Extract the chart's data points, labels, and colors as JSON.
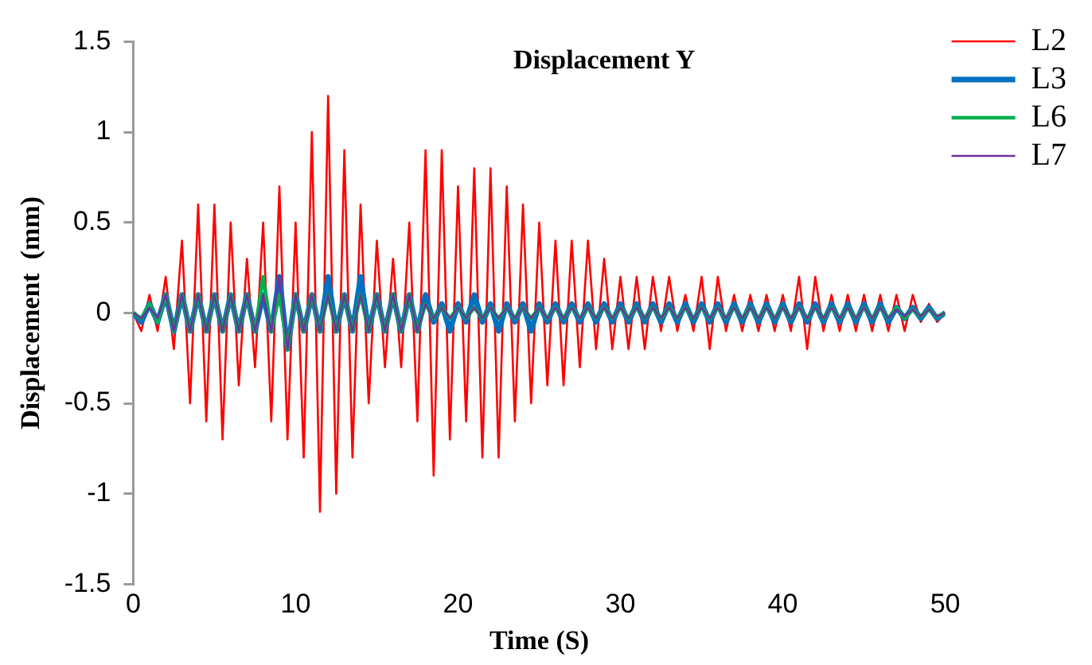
{
  "chart_data": {
    "type": "line",
    "title": "Displacement Y",
    "xlabel": "Time (S)",
    "ylabel": "Displacement  (mm)",
    "xlim": [
      0,
      50
    ],
    "xticks": [
      0,
      10,
      20,
      30,
      40,
      50
    ],
    "ylim": [
      -1.5,
      1.5
    ],
    "yticks": [
      -1.5,
      -1,
      -0.5,
      0,
      0.5,
      1,
      1.5
    ],
    "grid": false,
    "legend": "top right",
    "marker": "none",
    "line_style": "solid",
    "x": [
      0,
      0.5,
      1,
      1.5,
      2,
      2.5,
      3,
      3.5,
      4,
      4.5,
      5,
      5.5,
      6,
      6.5,
      7,
      7.5,
      8,
      8.5,
      9,
      9.5,
      10,
      10.5,
      11,
      11.5,
      12,
      12.5,
      13,
      13.5,
      14,
      14.5,
      15,
      15.5,
      16,
      16.5,
      17,
      17.5,
      18,
      18.5,
      19,
      19.5,
      20,
      20.5,
      21,
      21.5,
      22,
      22.5,
      23,
      23.5,
      24,
      24.5,
      25,
      25.5,
      26,
      26.5,
      27,
      27.5,
      28,
      28.5,
      29,
      29.5,
      30,
      30.5,
      31,
      31.5,
      32,
      32.5,
      33,
      33.5,
      34,
      34.5,
      35,
      35.5,
      36,
      36.5,
      37,
      37.5,
      38,
      38.5,
      39,
      39.5,
      40,
      40.5,
      41,
      41.5,
      42,
      42.5,
      43,
      43.5,
      44,
      44.5,
      45,
      45.5,
      46,
      46.5,
      47,
      47.5,
      48,
      48.5,
      49,
      49.5,
      50
    ],
    "series": [
      {
        "name": "L2",
        "color": "#ff0000",
        "values": [
          0,
          -0.1,
          0.1,
          -0.1,
          0.2,
          -0.2,
          0.4,
          -0.5,
          0.6,
          -0.6,
          0.6,
          -0.7,
          0.5,
          -0.4,
          0.3,
          -0.3,
          0.5,
          -0.6,
          0.7,
          -0.7,
          0.5,
          -0.8,
          1,
          -1.1,
          1.2,
          -1,
          0.9,
          -0.8,
          0.6,
          -0.5,
          0.4,
          -0.3,
          0.3,
          -0.3,
          0.5,
          -0.6,
          0.9,
          -0.9,
          0.9,
          -0.7,
          0.7,
          -0.6,
          0.8,
          -0.8,
          0.8,
          -0.8,
          0.7,
          -0.6,
          0.6,
          -0.5,
          0.5,
          -0.4,
          0.4,
          -0.4,
          0.4,
          -0.3,
          0.4,
          -0.2,
          0.3,
          -0.2,
          0.2,
          -0.2,
          0.2,
          -0.2,
          0.2,
          -0.1,
          0.2,
          -0.1,
          0.1,
          -0.1,
          0.2,
          -0.2,
          0.2,
          -0.1,
          0.1,
          -0.1,
          0.1,
          -0.1,
          0.1,
          -0.1,
          0.1,
          -0.1,
          0.2,
          -0.2,
          0.2,
          -0.1,
          0.1,
          -0.1,
          0.1,
          -0.1,
          0.1,
          -0.1,
          0.1,
          -0.1,
          0.1,
          -0.1,
          0.1,
          -0.05,
          0.05,
          -0.05,
          0
        ]
      },
      {
        "name": "L3",
        "color": "#0070c0",
        "values": [
          0,
          -0.05,
          0.05,
          -0.05,
          0.1,
          -0.1,
          0.1,
          -0.1,
          0.1,
          -0.1,
          0.1,
          -0.1,
          0.1,
          -0.1,
          0.1,
          -0.1,
          0.1,
          -0.1,
          0.2,
          -0.2,
          0.1,
          -0.1,
          0.1,
          -0.1,
          0.2,
          -0.1,
          0.1,
          -0.1,
          0.2,
          -0.1,
          0.1,
          -0.1,
          0.1,
          -0.1,
          0.1,
          -0.1,
          0.1,
          -0.05,
          0.05,
          -0.1,
          0.05,
          -0.05,
          0.1,
          -0.05,
          0.05,
          -0.1,
          0.05,
          -0.05,
          0.05,
          -0.1,
          0.05,
          -0.05,
          0.05,
          -0.05,
          0.05,
          -0.05,
          0.05,
          -0.05,
          0.05,
          -0.05,
          0.05,
          -0.05,
          0.05,
          -0.05,
          0.05,
          -0.05,
          0.05,
          -0.05,
          0.05,
          -0.05,
          0.05,
          -0.05,
          0.05,
          -0.05,
          0.05,
          -0.05,
          0.05,
          -0.05,
          0.05,
          -0.05,
          0.05,
          -0.05,
          0.05,
          -0.05,
          0.05,
          -0.05,
          0.05,
          -0.05,
          0.05,
          -0.05,
          0.05,
          -0.05,
          0.05,
          -0.05,
          0.03,
          -0.03,
          0.03,
          -0.03,
          0.03,
          -0.03,
          0
        ]
      },
      {
        "name": "L6",
        "color": "#00b050",
        "values": [
          0,
          -0.03,
          0.05,
          -0.05,
          0.1,
          -0.1,
          0.1,
          -0.1,
          0.1,
          -0.1,
          0.1,
          -0.1,
          0.1,
          -0.1,
          0.1,
          -0.1,
          0.2,
          -0.1,
          0.1,
          -0.2,
          0.1,
          -0.1,
          0.1,
          -0.1,
          0.1,
          -0.1,
          0.1,
          -0.1,
          0.1,
          -0.1,
          0.1,
          -0.1,
          0.1,
          -0.1,
          0.1,
          -0.1,
          0.05,
          -0.03,
          0.03,
          -0.03,
          0.03,
          -0.03,
          0.03,
          -0.03,
          0.03,
          -0.03,
          0.03,
          -0.03,
          0.03,
          -0.03,
          0.03,
          -0.03,
          0.03,
          -0.03,
          0.03,
          -0.03,
          0.03,
          -0.03,
          0.03,
          -0.03,
          0.03,
          -0.03,
          0.03,
          -0.03,
          0.03,
          -0.03,
          0.03,
          -0.03,
          0.03,
          -0.03,
          0.03,
          -0.03,
          0.03,
          -0.03,
          0.03,
          -0.03,
          0.03,
          -0.03,
          0.03,
          -0.03,
          0.03,
          -0.03,
          0.03,
          -0.03,
          0.03,
          -0.03,
          0.03,
          -0.03,
          0.03,
          -0.03,
          0.03,
          -0.03,
          0.03,
          -0.03,
          0.03,
          -0.03,
          0.02,
          -0.02,
          0.02,
          -0.02,
          0
        ]
      },
      {
        "name": "L7",
        "color": "#7030a0",
        "values": [
          0,
          -0.03,
          0.03,
          -0.03,
          0.1,
          -0.1,
          0.1,
          -0.1,
          0.1,
          -0.1,
          0.1,
          -0.1,
          0.1,
          -0.1,
          0.1,
          -0.1,
          0.1,
          -0.1,
          0.2,
          -0.2,
          0.1,
          -0.1,
          0.1,
          -0.1,
          0.1,
          -0.1,
          0.1,
          -0.1,
          0.1,
          -0.1,
          0.1,
          -0.1,
          0.1,
          -0.1,
          0.1,
          -0.1,
          0.05,
          -0.03,
          0.03,
          -0.03,
          0.03,
          -0.03,
          0.03,
          -0.03,
          0.03,
          -0.03,
          0.03,
          -0.03,
          0.03,
          -0.03,
          0.03,
          -0.03,
          0.03,
          -0.03,
          0.03,
          -0.03,
          0.03,
          -0.03,
          0.03,
          -0.03,
          0.03,
          -0.03,
          0.03,
          -0.03,
          0.03,
          -0.03,
          0.03,
          -0.03,
          0.03,
          -0.03,
          0.03,
          -0.03,
          0.03,
          -0.03,
          0.03,
          -0.03,
          0.03,
          -0.03,
          0.03,
          -0.03,
          0.03,
          -0.03,
          0.03,
          -0.03,
          0.03,
          -0.03,
          0.03,
          -0.03,
          0.03,
          -0.03,
          0.03,
          -0.03,
          0.03,
          -0.03,
          0.02,
          -0.02,
          0.02,
          -0.02,
          0.02,
          -0.02,
          0
        ]
      }
    ]
  }
}
